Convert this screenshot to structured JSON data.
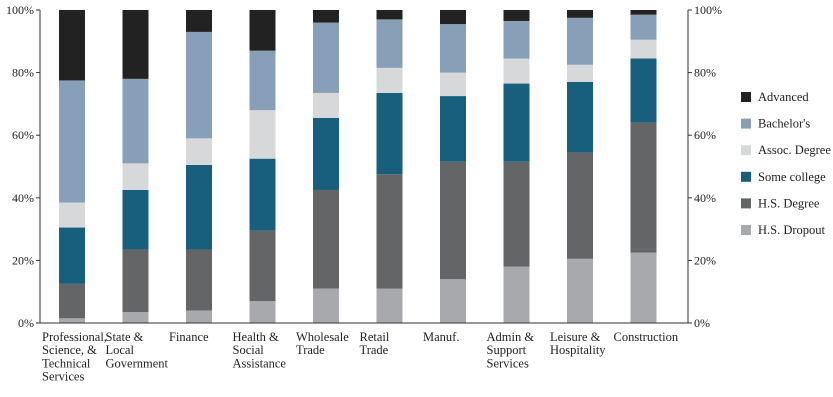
{
  "chart_data": {
    "type": "bar",
    "stacked": true,
    "title": "",
    "xlabel": "",
    "ylabel": "",
    "ylim": [
      0,
      100
    ],
    "yticks": [
      "0%",
      "20%",
      "40%",
      "60%",
      "80%",
      "100%"
    ],
    "right_axis_ticks": true,
    "grid": false,
    "legend_position": "right",
    "categories": [
      "Professional,\nScience, &\nTechnical\nServices",
      "State &\nLocal\nGovernment",
      "Finance",
      "Health &\nSocial\nAssistance",
      "Wholesale\nTrade",
      "Retail\nTrade",
      "Manuf.",
      "Admin &\nSupport\nServices",
      "Leisure &\nHospitality",
      "Construction"
    ],
    "series": [
      {
        "name": "H.S. Dropout",
        "color": "#a8a9ad",
        "values": [
          1.5,
          3.5,
          4,
          7,
          11,
          11,
          14,
          18,
          20.5,
          22.5
        ]
      },
      {
        "name": "H.S. Degree",
        "color": "#646566",
        "values": [
          11,
          20,
          19.5,
          22.5,
          31.5,
          36.5,
          37.5,
          33.5,
          34,
          41.5
        ]
      },
      {
        "name": "Some college",
        "color": "#185f7e",
        "values": [
          18,
          19,
          27,
          23,
          23,
          26,
          21,
          25,
          22.5,
          20.5
        ]
      },
      {
        "name": "Assoc. Degree",
        "color": "#d7d8da",
        "values": [
          8,
          8.5,
          8.5,
          15.5,
          8,
          8,
          7.5,
          8,
          5.5,
          6
        ]
      },
      {
        "name": "Bachelor's",
        "color": "#889fb8",
        "values": [
          39,
          27,
          34,
          19,
          22.5,
          15.5,
          15.5,
          12,
          15,
          8
        ]
      },
      {
        "name": "Advanced",
        "color": "#222222",
        "values": [
          22.5,
          22,
          7,
          13,
          4,
          3,
          4.5,
          3.5,
          2.5,
          1.5
        ]
      }
    ]
  }
}
